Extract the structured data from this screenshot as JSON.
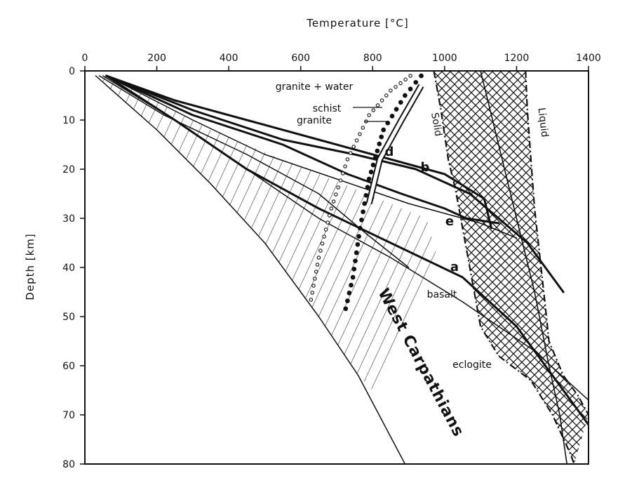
{
  "chart_data": {
    "type": "line",
    "xlabel": "Temperature [°C]",
    "ylabel": "Depth [km]",
    "xlim": [
      0,
      1400
    ],
    "ylim": [
      0,
      80
    ],
    "y_inverted": true,
    "x_axis_position": "top",
    "x_ticks": [
      0,
      200,
      400,
      600,
      800,
      1000,
      1200,
      1400
    ],
    "y_ticks": [
      0,
      10,
      20,
      30,
      40,
      50,
      60,
      70,
      80
    ],
    "grid": false,
    "legend": "none",
    "series": [
      {
        "label": "a",
        "style": "thick",
        "points": [
          [
            60,
            1
          ],
          [
            250,
            10
          ],
          [
            450,
            20
          ],
          [
            650,
            28
          ],
          [
            850,
            35
          ],
          [
            1050,
            42
          ],
          [
            1200,
            52
          ],
          [
            1300,
            62
          ],
          [
            1400,
            72
          ]
        ]
      },
      {
        "label": "b",
        "style": "thick",
        "points": [
          [
            60,
            1
          ],
          [
            250,
            6
          ],
          [
            450,
            10
          ],
          [
            650,
            14
          ],
          [
            850,
            18
          ],
          [
            1000,
            21
          ],
          [
            1110,
            26
          ],
          [
            1130,
            32
          ]
        ]
      },
      {
        "label": "d",
        "style": "thick",
        "points": [
          [
            60,
            1
          ],
          [
            300,
            8
          ],
          [
            550,
            14
          ],
          [
            750,
            17
          ],
          [
            920,
            20
          ],
          [
            1070,
            25
          ],
          [
            1150,
            30
          ],
          [
            1230,
            35
          ],
          [
            1300,
            42
          ],
          [
            1330,
            45
          ]
        ]
      },
      {
        "label": "e",
        "style": "thick",
        "points": [
          [
            60,
            1
          ],
          [
            300,
            9
          ],
          [
            550,
            15
          ],
          [
            730,
            21
          ],
          [
            880,
            25
          ],
          [
            1000,
            28
          ],
          [
            1060,
            30
          ],
          [
            1150,
            31
          ]
        ]
      },
      {
        "label": "",
        "style": "thin",
        "points": [
          [
            60,
            1
          ],
          [
            300,
            10
          ],
          [
            500,
            17
          ],
          [
            700,
            22
          ],
          [
            900,
            27
          ],
          [
            1100,
            31
          ],
          [
            1200,
            34
          ]
        ]
      },
      {
        "label": "",
        "style": "thin",
        "points": [
          [
            30,
            1
          ],
          [
            200,
            12
          ],
          [
            350,
            23
          ],
          [
            500,
            35
          ],
          [
            650,
            50
          ],
          [
            760,
            62
          ],
          [
            890,
            80
          ]
        ]
      },
      {
        "label": "",
        "style": "thin",
        "points": [
          [
            40,
            1
          ],
          [
            220,
            9
          ],
          [
            450,
            17
          ],
          [
            650,
            25
          ],
          [
            780,
            33
          ],
          [
            900,
            40
          ]
        ]
      },
      {
        "label": "",
        "style": "thin",
        "points": [
          [
            50,
            1
          ],
          [
            250,
            10
          ],
          [
            450,
            20
          ],
          [
            650,
            30
          ],
          [
            850,
            38
          ],
          [
            1050,
            47
          ],
          [
            1250,
            57
          ],
          [
            1400,
            67
          ]
        ]
      }
    ],
    "melting_curves": [
      {
        "label": "granite + water",
        "style": "dots-large",
        "points": [
          [
            935,
            1
          ],
          [
            890,
            5
          ],
          [
            830,
            12
          ],
          [
            790,
            22
          ],
          [
            765,
            32
          ],
          [
            745,
            42
          ],
          [
            720,
            50
          ]
        ]
      },
      {
        "label": "",
        "style": "dots-small",
        "points": [
          [
            905,
            1
          ],
          [
            850,
            4
          ],
          [
            790,
            9
          ],
          [
            730,
            18
          ],
          [
            685,
            28
          ],
          [
            650,
            38
          ],
          [
            625,
            48
          ]
        ]
      }
    ],
    "hatched_region": {
      "label": "West Carpathians",
      "upper": [
        [
          60,
          1
        ],
        [
          350,
          12
        ],
        [
          650,
          21
        ],
        [
          950,
          30
        ],
        [
          980,
          38
        ]
      ],
      "lower": [
        [
          30,
          1
        ],
        [
          200,
          12
        ],
        [
          350,
          23
        ],
        [
          500,
          35
        ],
        [
          650,
          50
        ],
        [
          760,
          62
        ],
        [
          800,
          65
        ]
      ]
    },
    "melting_zone": {
      "solid_label": "Solid",
      "liquid_label": "Liquid",
      "solid_boundary": [
        [
          970,
          0
        ],
        [
          990,
          8
        ],
        [
          1010,
          18
        ],
        [
          1030,
          24
        ],
        [
          1050,
          32
        ],
        [
          1075,
          42
        ],
        [
          1100,
          52
        ],
        [
          1150,
          58
        ],
        [
          1240,
          63
        ],
        [
          1300,
          70
        ],
        [
          1350,
          78
        ],
        [
          1360,
          80
        ]
      ],
      "liquid_boundary": [
        [
          1225,
          0
        ],
        [
          1230,
          8
        ],
        [
          1240,
          18
        ],
        [
          1250,
          28
        ],
        [
          1265,
          38
        ],
        [
          1280,
          48
        ],
        [
          1290,
          55
        ],
        [
          1330,
          62
        ],
        [
          1370,
          66
        ],
        [
          1400,
          70
        ]
      ],
      "middle_line": [
        [
          1100,
          0
        ],
        [
          1150,
          15
        ],
        [
          1200,
          30
        ],
        [
          1250,
          45
        ],
        [
          1290,
          60
        ],
        [
          1320,
          70
        ],
        [
          1340,
          80
        ]
      ]
    },
    "annotations": [
      {
        "text": "granite + water",
        "x": 860,
        "y": 4
      },
      {
        "text": "schist",
        "x": 740,
        "y": 8
      },
      {
        "text": "granite",
        "x": 720,
        "y": 10
      },
      {
        "text": "d",
        "x": 838,
        "y": 17
      },
      {
        "text": "b",
        "x": 942,
        "y": 20
      },
      {
        "text": "e",
        "x": 1008,
        "y": 31
      },
      {
        "text": "a",
        "x": 1020,
        "y": 41
      },
      {
        "text": "basalt",
        "x": 1020,
        "y": 46
      },
      {
        "text": "eclogite",
        "x": 1090,
        "y": 60
      },
      {
        "text": "Solid",
        "x": 980,
        "y": 10
      },
      {
        "text": "Liquid",
        "x": 1240,
        "y": 10
      }
    ],
    "transition_bar": {
      "points": [
        [
          935,
          3
        ],
        [
          880,
          10
        ],
        [
          820,
          18
        ],
        [
          790,
          27
        ]
      ]
    }
  }
}
